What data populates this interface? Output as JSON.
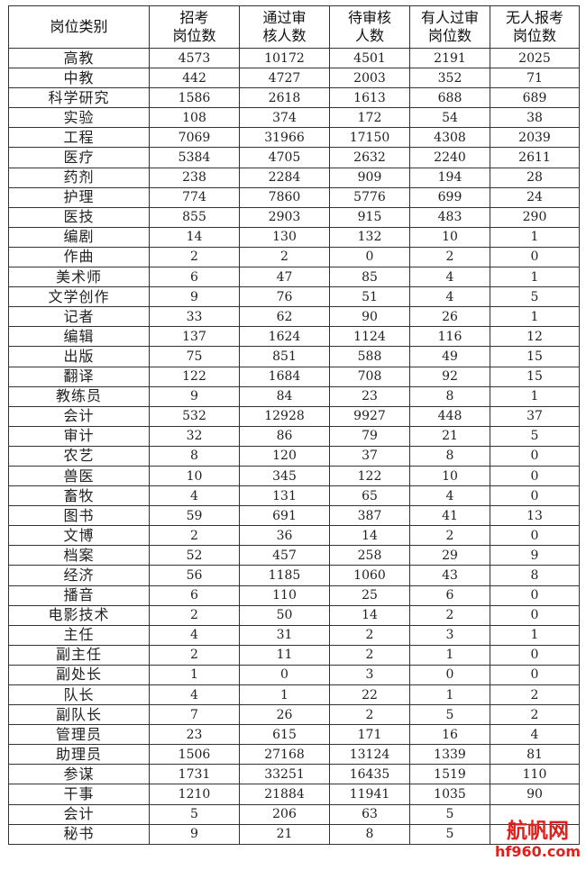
{
  "table": {
    "headers": [
      [
        "岗位类别"
      ],
      [
        "招考",
        "岗位数"
      ],
      [
        "通过审",
        "核人数"
      ],
      [
        "待审核",
        "人数"
      ],
      [
        "有人过审",
        "岗位数"
      ],
      [
        "无人报考",
        "岗位数"
      ]
    ],
    "rows": [
      [
        "高教",
        "4573",
        "10172",
        "4501",
        "2191",
        "2025"
      ],
      [
        "中教",
        "442",
        "4727",
        "2003",
        "352",
        "71"
      ],
      [
        "科学研究",
        "1586",
        "2618",
        "1613",
        "688",
        "689"
      ],
      [
        "实验",
        "108",
        "374",
        "172",
        "54",
        "38"
      ],
      [
        "工程",
        "7069",
        "31966",
        "17150",
        "4308",
        "2039"
      ],
      [
        "医疗",
        "5384",
        "4705",
        "2632",
        "2240",
        "2611"
      ],
      [
        "药剂",
        "238",
        "2284",
        "909",
        "194",
        "28"
      ],
      [
        "护理",
        "774",
        "7860",
        "5776",
        "699",
        "24"
      ],
      [
        "医技",
        "855",
        "2903",
        "915",
        "483",
        "290"
      ],
      [
        "编剧",
        "14",
        "130",
        "132",
        "10",
        "1"
      ],
      [
        "作曲",
        "2",
        "2",
        "0",
        "2",
        "0"
      ],
      [
        "美术师",
        "6",
        "47",
        "85",
        "4",
        "1"
      ],
      [
        "文学创作",
        "9",
        "76",
        "51",
        "4",
        "5"
      ],
      [
        "记者",
        "33",
        "62",
        "90",
        "26",
        "1"
      ],
      [
        "编辑",
        "137",
        "1624",
        "1124",
        "116",
        "12"
      ],
      [
        "出版",
        "75",
        "851",
        "588",
        "49",
        "15"
      ],
      [
        "翻译",
        "122",
        "1684",
        "708",
        "92",
        "15"
      ],
      [
        "教练员",
        "9",
        "84",
        "23",
        "8",
        "1"
      ],
      [
        "会计",
        "532",
        "12928",
        "9927",
        "448",
        "37"
      ],
      [
        "审计",
        "32",
        "86",
        "79",
        "21",
        "5"
      ],
      [
        "农艺",
        "8",
        "120",
        "37",
        "8",
        "0"
      ],
      [
        "兽医",
        "10",
        "345",
        "122",
        "10",
        "0"
      ],
      [
        "畜牧",
        "4",
        "131",
        "65",
        "4",
        "0"
      ],
      [
        "图书",
        "59",
        "691",
        "387",
        "41",
        "13"
      ],
      [
        "文博",
        "2",
        "36",
        "14",
        "2",
        "0"
      ],
      [
        "档案",
        "52",
        "457",
        "258",
        "29",
        "9"
      ],
      [
        "经济",
        "56",
        "1185",
        "1060",
        "43",
        "8"
      ],
      [
        "播音",
        "6",
        "110",
        "25",
        "6",
        "0"
      ],
      [
        "电影技术",
        "2",
        "50",
        "14",
        "2",
        "0"
      ],
      [
        "主任",
        "4",
        "31",
        "2",
        "3",
        "1"
      ],
      [
        "副主任",
        "2",
        "11",
        "2",
        "1",
        "0"
      ],
      [
        "副处长",
        "1",
        "0",
        "3",
        "0",
        "0"
      ],
      [
        "队长",
        "4",
        "1",
        "22",
        "1",
        "2"
      ],
      [
        "副队长",
        "7",
        "26",
        "2",
        "5",
        "2"
      ],
      [
        "管理员",
        "23",
        "615",
        "171",
        "16",
        "4"
      ],
      [
        "助理员",
        "1506",
        "27168",
        "13124",
        "1339",
        "81"
      ],
      [
        "参谋",
        "1731",
        "33251",
        "16435",
        "1519",
        "110"
      ],
      [
        "干事",
        "1210",
        "21884",
        "11941",
        "1035",
        "90"
      ],
      [
        "会计",
        "5",
        "206",
        "63",
        "5",
        ""
      ],
      [
        "秘书",
        "9",
        "21",
        "8",
        "5",
        ""
      ]
    ]
  },
  "watermark": {
    "line1": "航帆网",
    "line2": "hf960.com",
    "color": "#e0201c"
  }
}
